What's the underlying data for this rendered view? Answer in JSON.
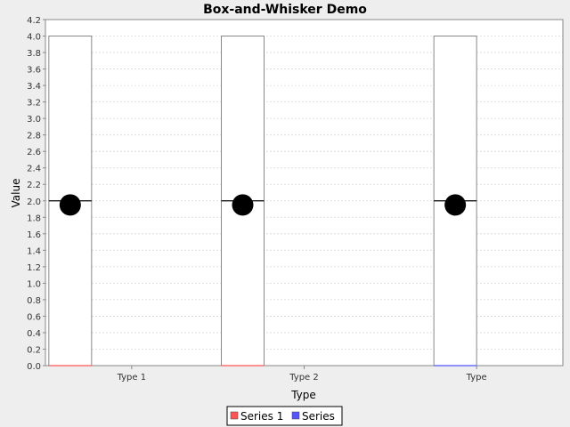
{
  "chart_data": {
    "type": "box",
    "title": "Box-and-Whisker Demo",
    "xlabel": "Type",
    "ylabel": "Value",
    "categories": [
      "Type 1",
      "Type 2",
      "Type"
    ],
    "ylim": [
      0,
      4.2
    ],
    "yticks": [
      "0.0",
      "0.2",
      "0.4",
      "0.6",
      "0.8",
      "1.0",
      "1.2",
      "1.4",
      "1.6",
      "1.8",
      "2.0",
      "2.2",
      "2.4",
      "2.6",
      "2.8",
      "3.0",
      "3.2",
      "3.4",
      "3.6",
      "3.8",
      "4.0",
      "4.2"
    ],
    "grid": true,
    "legend_position": "bottom",
    "series": [
      {
        "name": "Series 1",
        "color": "#ff5555",
        "boxes": [
          {
            "min": 0,
            "q1": 0,
            "median": 2.0,
            "q3": 4.0,
            "max": 4.0,
            "mean": 1.95
          },
          {
            "min": 0,
            "q1": 0,
            "median": 2.0,
            "q3": 4.0,
            "max": 4.0,
            "mean": 1.95
          },
          null
        ]
      },
      {
        "name": "Series",
        "color": "#5555ff",
        "boxes": [
          null,
          null,
          {
            "min": 0,
            "q1": 0,
            "median": 2.0,
            "q3": 4.0,
            "max": 4.0,
            "mean": 1.95
          }
        ]
      }
    ]
  }
}
